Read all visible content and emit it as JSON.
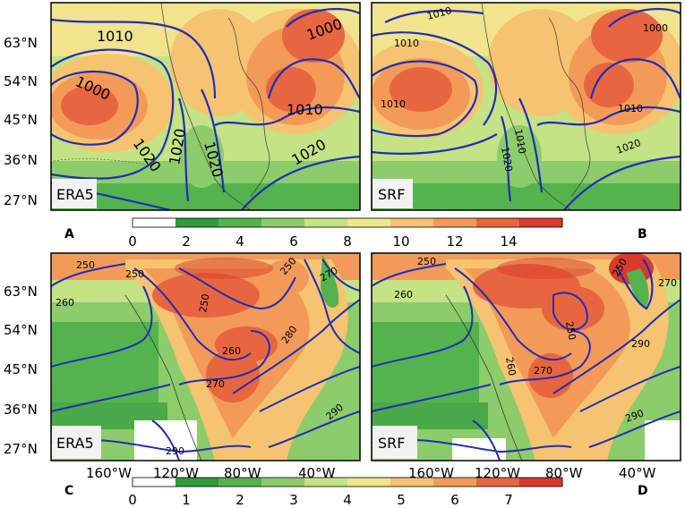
{
  "colors": {
    "contour": "#1f2db8",
    "coast": "#3a3a3a",
    "frame": "#000000",
    "label_box": "#f2f2f2",
    "top_scale": [
      "#ffffff",
      "#2e9a3a",
      "#55b34d",
      "#8ccc6a",
      "#c3e384",
      "#f1e48c",
      "#f6c371",
      "#f39a58",
      "#e8663f",
      "#d93a2c"
    ],
    "bottom_scale": [
      "#ffffff",
      "#2e9a3a",
      "#55b34d",
      "#8ccc6a",
      "#c3e384",
      "#f1e48c",
      "#f6c371",
      "#f39a58",
      "#e8663f",
      "#d93a2c"
    ]
  },
  "latitude_ticks": [
    "63°N",
    "54°N",
    "45°N",
    "36°N",
    "27°N"
  ],
  "longitude_ticks": {
    "left": [
      "160°W",
      "120°W",
      "80°W",
      "40°W"
    ],
    "right": [
      "160°W",
      "120°W",
      "80°W",
      "40°W"
    ]
  },
  "colorbar_top": {
    "ticks": [
      "0",
      "2",
      "4",
      "6",
      "8",
      "10",
      "12",
      "14"
    ],
    "min": 0,
    "max": 16
  },
  "colorbar_bottom": {
    "ticks": [
      "0",
      "1",
      "2",
      "3",
      "4",
      "5",
      "6",
      "7"
    ],
    "min": 0,
    "max": 8
  },
  "panels": [
    {
      "letter": "A",
      "source": "ERA5",
      "contour_labels": [
        "1010",
        "1000",
        "1020",
        "1020",
        "1020",
        "1020",
        "1010",
        "1000"
      ]
    },
    {
      "letter": "B",
      "source": "SRF",
      "contour_labels": [
        "1010",
        "1010",
        "1010",
        "1010",
        "1000",
        "1010",
        "1020",
        "1020"
      ]
    },
    {
      "letter": "C",
      "source": "ERA5",
      "contour_labels": [
        "250",
        "250",
        "260",
        "250",
        "250",
        "270",
        "260",
        "270",
        "280",
        "290",
        "290"
      ]
    },
    {
      "letter": "D",
      "source": "SRF",
      "contour_labels": [
        "250",
        "260",
        "250",
        "250",
        "270",
        "260",
        "270",
        "290",
        "290"
      ]
    }
  ]
}
